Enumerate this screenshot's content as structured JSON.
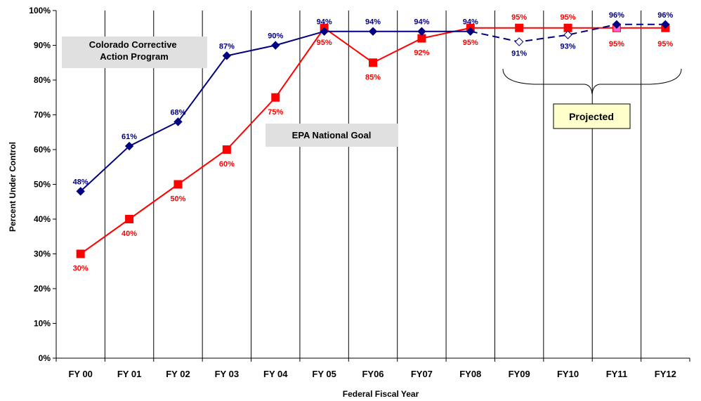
{
  "chart_data": {
    "type": "line",
    "categories": [
      "FY 00",
      "FY 01",
      "FY 02",
      "FY 03",
      "FY 04",
      "FY 05",
      "FY06",
      "FY07",
      "FY08",
      "FY09",
      "FY10",
      "FY11",
      "FY12"
    ],
    "xlabel": "Federal Fiscal Year",
    "ylabel": "Percent Under Control",
    "ylim": [
      0,
      100
    ],
    "yticks": [
      "0%",
      "10%",
      "20%",
      "30%",
      "40%",
      "50%",
      "60%",
      "70%",
      "80%",
      "90%",
      "100%"
    ],
    "series": [
      {
        "name": "Colorado Corrective Action Program",
        "color": "#000080",
        "marker": "diamond",
        "values": [
          48,
          61,
          68,
          87,
          90,
          94,
          94,
          94,
          94,
          91,
          93,
          96,
          96
        ],
        "labels": [
          "48%",
          "61%",
          "68%",
          "87%",
          "90%",
          "94%",
          "94%",
          "94%",
          "94%",
          "91%",
          "93%",
          "96%",
          "96%"
        ],
        "projected_from_index": 8
      },
      {
        "name": "EPA National Goal",
        "color": "#ff0000",
        "marker": "square",
        "values": [
          30,
          40,
          50,
          60,
          75,
          95,
          85,
          92,
          95,
          95,
          95,
          95,
          95
        ],
        "labels": [
          "30%",
          "40%",
          "50%",
          "60%",
          "75%",
          "95%",
          "85%",
          "92%",
          "95%",
          "95%",
          "95%",
          "95%",
          "95%"
        ]
      }
    ],
    "annotations": {
      "projected": "Projected"
    },
    "grid": "vertical-only",
    "colors": {
      "label_box": "#e0e0e0",
      "projected_box": "#ffffcc",
      "projected_marker_fill": "#ff66cc"
    }
  }
}
